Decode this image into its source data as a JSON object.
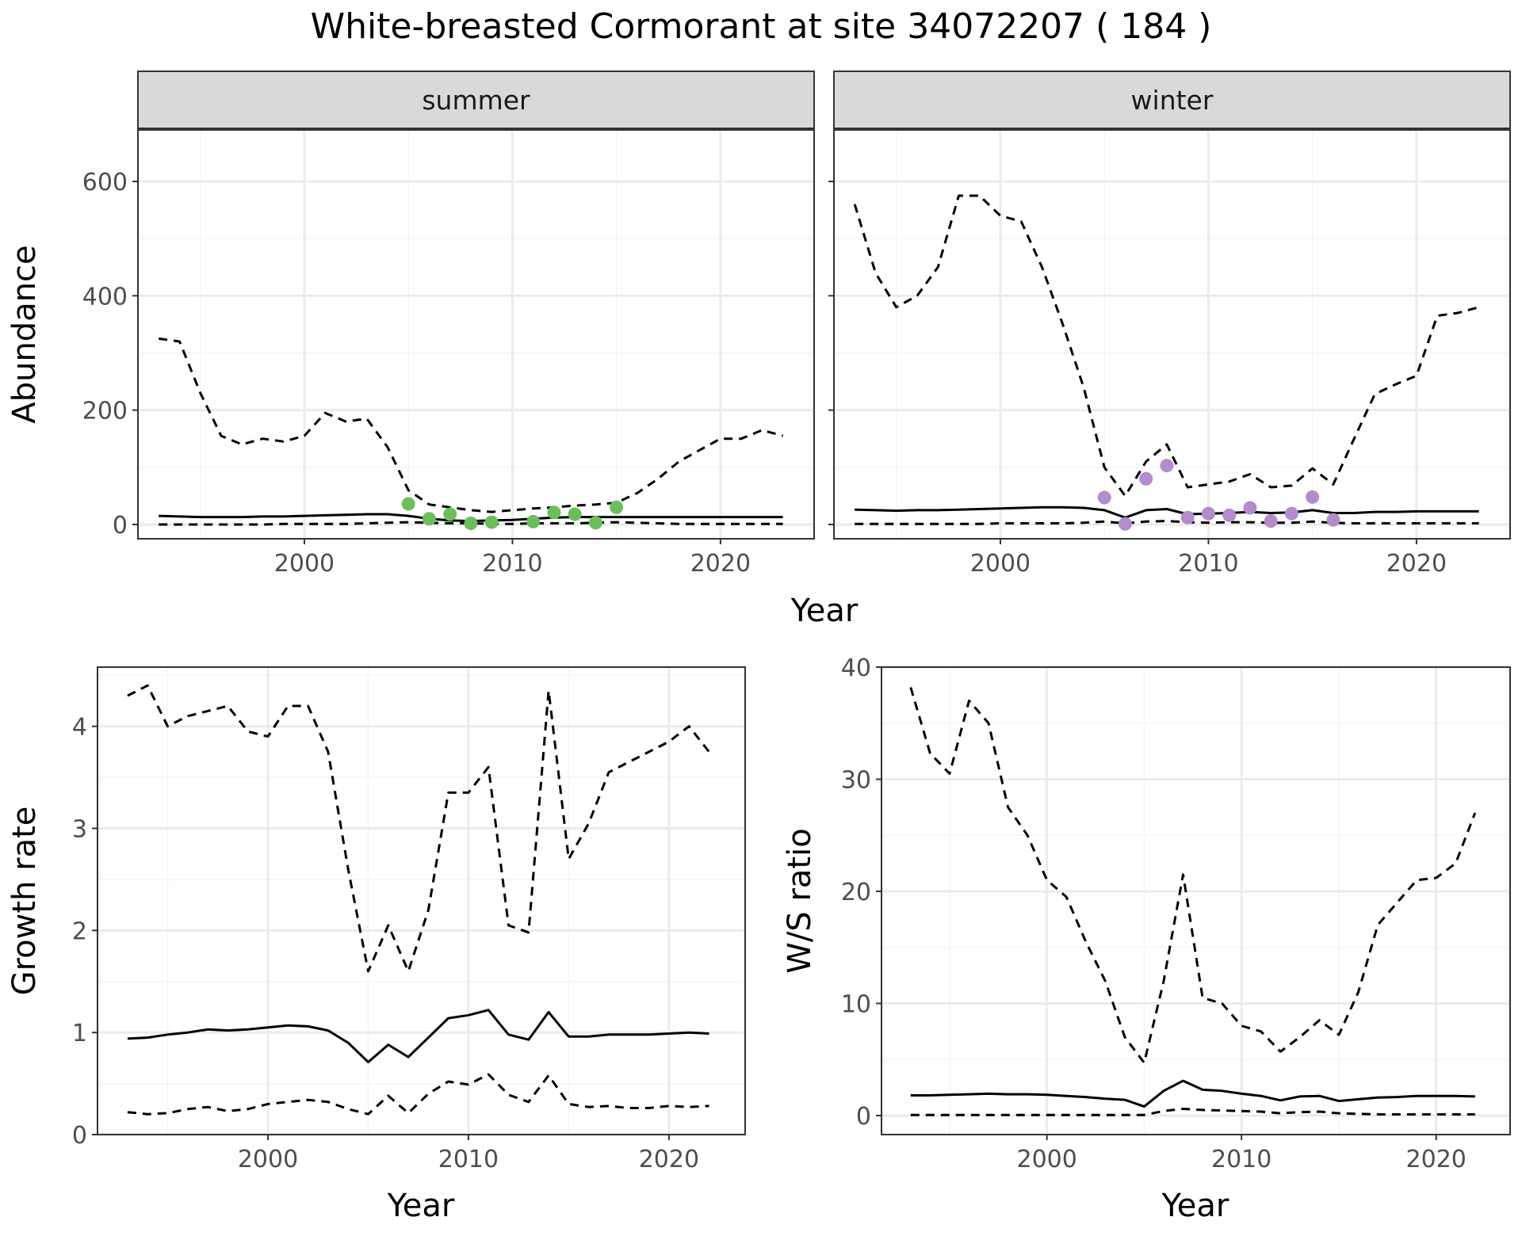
{
  "title": "White-breasted Cormorant at site 34072207 ( 184 )",
  "colors": {
    "summer_points": "#6abf5a",
    "winter_points": "#b38ccc",
    "strip": "#d9d9d9",
    "grid": "#ebebeb"
  },
  "chart_data": [
    {
      "type": "line",
      "panel": "summer",
      "strip_label": "summer",
      "ylabel": "Abundance",
      "xlabel": "Year",
      "xlim": [
        1992,
        2024.5
      ],
      "ylim": [
        -25,
        690
      ],
      "x_ticks": [
        2000,
        2010,
        2020
      ],
      "y_ticks": [
        0,
        200,
        400,
        600
      ],
      "grid": true,
      "x": [
        1993,
        1994,
        1995,
        1996,
        1997,
        1998,
        1999,
        2000,
        2001,
        2002,
        2003,
        2004,
        2005,
        2006,
        2007,
        2008,
        2009,
        2010,
        2011,
        2012,
        2013,
        2014,
        2015,
        2016,
        2017,
        2018,
        2019,
        2020,
        2021,
        2022,
        2023
      ],
      "series": [
        {
          "role": "upper",
          "style": "dashed",
          "values": [
            325,
            320,
            230,
            155,
            140,
            150,
            145,
            155,
            195,
            180,
            185,
            135,
            60,
            35,
            30,
            25,
            22,
            25,
            28,
            30,
            33,
            35,
            38,
            55,
            80,
            110,
            130,
            150,
            150,
            165,
            155
          ]
        },
        {
          "role": "mean",
          "style": "solid",
          "values": [
            15,
            14,
            13,
            13,
            13,
            14,
            14,
            15,
            16,
            17,
            18,
            18,
            15,
            10,
            7,
            6,
            7,
            8,
            10,
            12,
            13,
            13,
            13,
            13,
            13,
            13,
            13,
            13,
            13,
            13,
            13
          ]
        },
        {
          "role": "lower",
          "style": "dashed",
          "values": [
            0,
            0,
            0,
            0,
            0,
            0,
            1,
            1,
            1,
            1,
            2,
            3,
            4,
            3,
            2,
            2,
            1,
            1,
            2,
            2,
            2,
            3,
            4,
            3,
            2,
            1,
            1,
            1,
            1,
            1,
            1
          ]
        }
      ],
      "points": {
        "name": "observed",
        "x": [
          2005,
          2006,
          2007,
          2008,
          2009,
          2011,
          2012,
          2013,
          2014,
          2015
        ],
        "y": [
          36,
          10,
          18,
          2,
          4,
          5,
          21,
          18,
          3,
          30
        ]
      }
    },
    {
      "type": "line",
      "panel": "winter",
      "strip_label": "winter",
      "xlabel": "Year",
      "xlim": [
        1992,
        2024.5
      ],
      "ylim": [
        -25,
        690
      ],
      "x_ticks": [
        2000,
        2010,
        2020
      ],
      "y_ticks": [
        0,
        200,
        400,
        600
      ],
      "grid": true,
      "x": [
        1993,
        1994,
        1995,
        1996,
        1997,
        1998,
        1999,
        2000,
        2001,
        2002,
        2003,
        2004,
        2005,
        2006,
        2007,
        2008,
        2009,
        2010,
        2011,
        2012,
        2013,
        2014,
        2015,
        2016,
        2017,
        2018,
        2019,
        2020,
        2021,
        2022,
        2023
      ],
      "series": [
        {
          "role": "upper",
          "style": "dashed",
          "values": [
            560,
            440,
            380,
            400,
            450,
            575,
            575,
            540,
            530,
            450,
            350,
            240,
            100,
            50,
            110,
            140,
            65,
            70,
            75,
            88,
            65,
            68,
            98,
            70,
            150,
            228,
            245,
            260,
            365,
            370,
            380
          ]
        },
        {
          "role": "mean",
          "style": "solid",
          "values": [
            26,
            25,
            24,
            25,
            25,
            26,
            27,
            28,
            29,
            30,
            30,
            29,
            25,
            12,
            25,
            27,
            18,
            19,
            20,
            22,
            20,
            21,
            25,
            20,
            20,
            22,
            22,
            23,
            23,
            23,
            23
          ]
        },
        {
          "role": "lower",
          "style": "dashed",
          "values": [
            1,
            1,
            1,
            1,
            1,
            1,
            1,
            2,
            2,
            2,
            2,
            3,
            5,
            2,
            5,
            6,
            4,
            3,
            4,
            4,
            3,
            3,
            5,
            3,
            2,
            2,
            2,
            2,
            2,
            2,
            2
          ]
        }
      ],
      "points": {
        "name": "observed",
        "x": [
          2005,
          2006,
          2007,
          2008,
          2009,
          2010,
          2011,
          2012,
          2013,
          2014,
          2015,
          2016
        ],
        "y": [
          47,
          1,
          80,
          103,
          12,
          19,
          16,
          29,
          6,
          19,
          48,
          8
        ]
      }
    },
    {
      "type": "line",
      "panel": "growth",
      "ylabel": "Growth rate",
      "xlabel": "Year",
      "xlim": [
        1991.5,
        2023.8
      ],
      "ylim": [
        0,
        4.58
      ],
      "x_ticks": [
        2000,
        2010,
        2020
      ],
      "y_ticks": [
        0,
        1,
        2,
        3,
        4
      ],
      "grid": true,
      "x": [
        1993,
        1994,
        1995,
        1996,
        1997,
        1998,
        1999,
        2000,
        2001,
        2002,
        2003,
        2004,
        2005,
        2006,
        2007,
        2008,
        2009,
        2010,
        2011,
        2012,
        2013,
        2014,
        2015,
        2016,
        2017,
        2018,
        2019,
        2020,
        2021,
        2022
      ],
      "series": [
        {
          "role": "upper",
          "style": "dashed",
          "values": [
            4.3,
            4.4,
            4.0,
            4.1,
            4.15,
            4.2,
            3.95,
            3.9,
            4.2,
            4.2,
            3.75,
            2.6,
            1.6,
            2.05,
            1.6,
            2.2,
            3.35,
            3.35,
            3.6,
            2.05,
            1.98,
            4.35,
            2.7,
            3.05,
            3.55,
            3.65,
            3.75,
            3.85,
            4.0,
            3.75
          ]
        },
        {
          "role": "mean",
          "style": "solid",
          "values": [
            0.94,
            0.95,
            0.98,
            1.0,
            1.03,
            1.02,
            1.03,
            1.05,
            1.07,
            1.06,
            1.02,
            0.9,
            0.71,
            0.88,
            0.76,
            0.95,
            1.14,
            1.17,
            1.22,
            0.98,
            0.93,
            1.2,
            0.96,
            0.96,
            0.98,
            0.98,
            0.98,
            0.99,
            1.0,
            0.99
          ]
        },
        {
          "role": "lower",
          "style": "dashed",
          "values": [
            0.22,
            0.2,
            0.21,
            0.25,
            0.27,
            0.23,
            0.25,
            0.3,
            0.32,
            0.34,
            0.32,
            0.25,
            0.2,
            0.38,
            0.21,
            0.4,
            0.52,
            0.49,
            0.59,
            0.39,
            0.32,
            0.58,
            0.3,
            0.27,
            0.28,
            0.26,
            0.26,
            0.28,
            0.27,
            0.28
          ]
        }
      ]
    },
    {
      "type": "line",
      "panel": "ws_ratio",
      "ylabel": "W/S ratio",
      "xlabel": "Year",
      "xlim": [
        1991.5,
        2023.8
      ],
      "ylim": [
        -1.7,
        40
      ],
      "x_ticks": [
        2000,
        2010,
        2020
      ],
      "y_ticks": [
        0,
        10,
        20,
        30,
        40
      ],
      "grid": true,
      "x": [
        1993,
        1994,
        1995,
        1996,
        1997,
        1998,
        1999,
        2000,
        2001,
        2002,
        2003,
        2004,
        2005,
        2006,
        2007,
        2008,
        2009,
        2010,
        2011,
        2012,
        2013,
        2014,
        2015,
        2016,
        2017,
        2018,
        2019,
        2020,
        2021,
        2022
      ],
      "series": [
        {
          "role": "upper",
          "style": "dashed",
          "values": [
            38.2,
            32.3,
            30.5,
            37.0,
            35.0,
            27.5,
            25.0,
            21.0,
            19.5,
            15.5,
            12.0,
            7.0,
            4.7,
            12.0,
            21.5,
            10.5,
            10.0,
            8.0,
            7.5,
            5.7,
            7.0,
            8.5,
            7.2,
            11.0,
            17.0,
            19.0,
            21.0,
            21.2,
            22.5,
            27.0
          ]
        },
        {
          "role": "mean",
          "style": "solid",
          "values": [
            1.8,
            1.8,
            1.85,
            1.9,
            1.95,
            1.9,
            1.9,
            1.85,
            1.75,
            1.65,
            1.5,
            1.4,
            0.8,
            2.2,
            3.1,
            2.3,
            2.2,
            1.95,
            1.75,
            1.35,
            1.7,
            1.75,
            1.3,
            1.45,
            1.6,
            1.65,
            1.75,
            1.75,
            1.75,
            1.7
          ]
        },
        {
          "role": "lower",
          "style": "dashed",
          "values": [
            0.05,
            0.05,
            0.05,
            0.05,
            0.05,
            0.05,
            0.05,
            0.05,
            0.05,
            0.05,
            0.05,
            0.05,
            0.05,
            0.4,
            0.6,
            0.5,
            0.45,
            0.4,
            0.35,
            0.2,
            0.3,
            0.35,
            0.2,
            0.15,
            0.1,
            0.1,
            0.1,
            0.1,
            0.1,
            0.1
          ]
        }
      ]
    }
  ]
}
